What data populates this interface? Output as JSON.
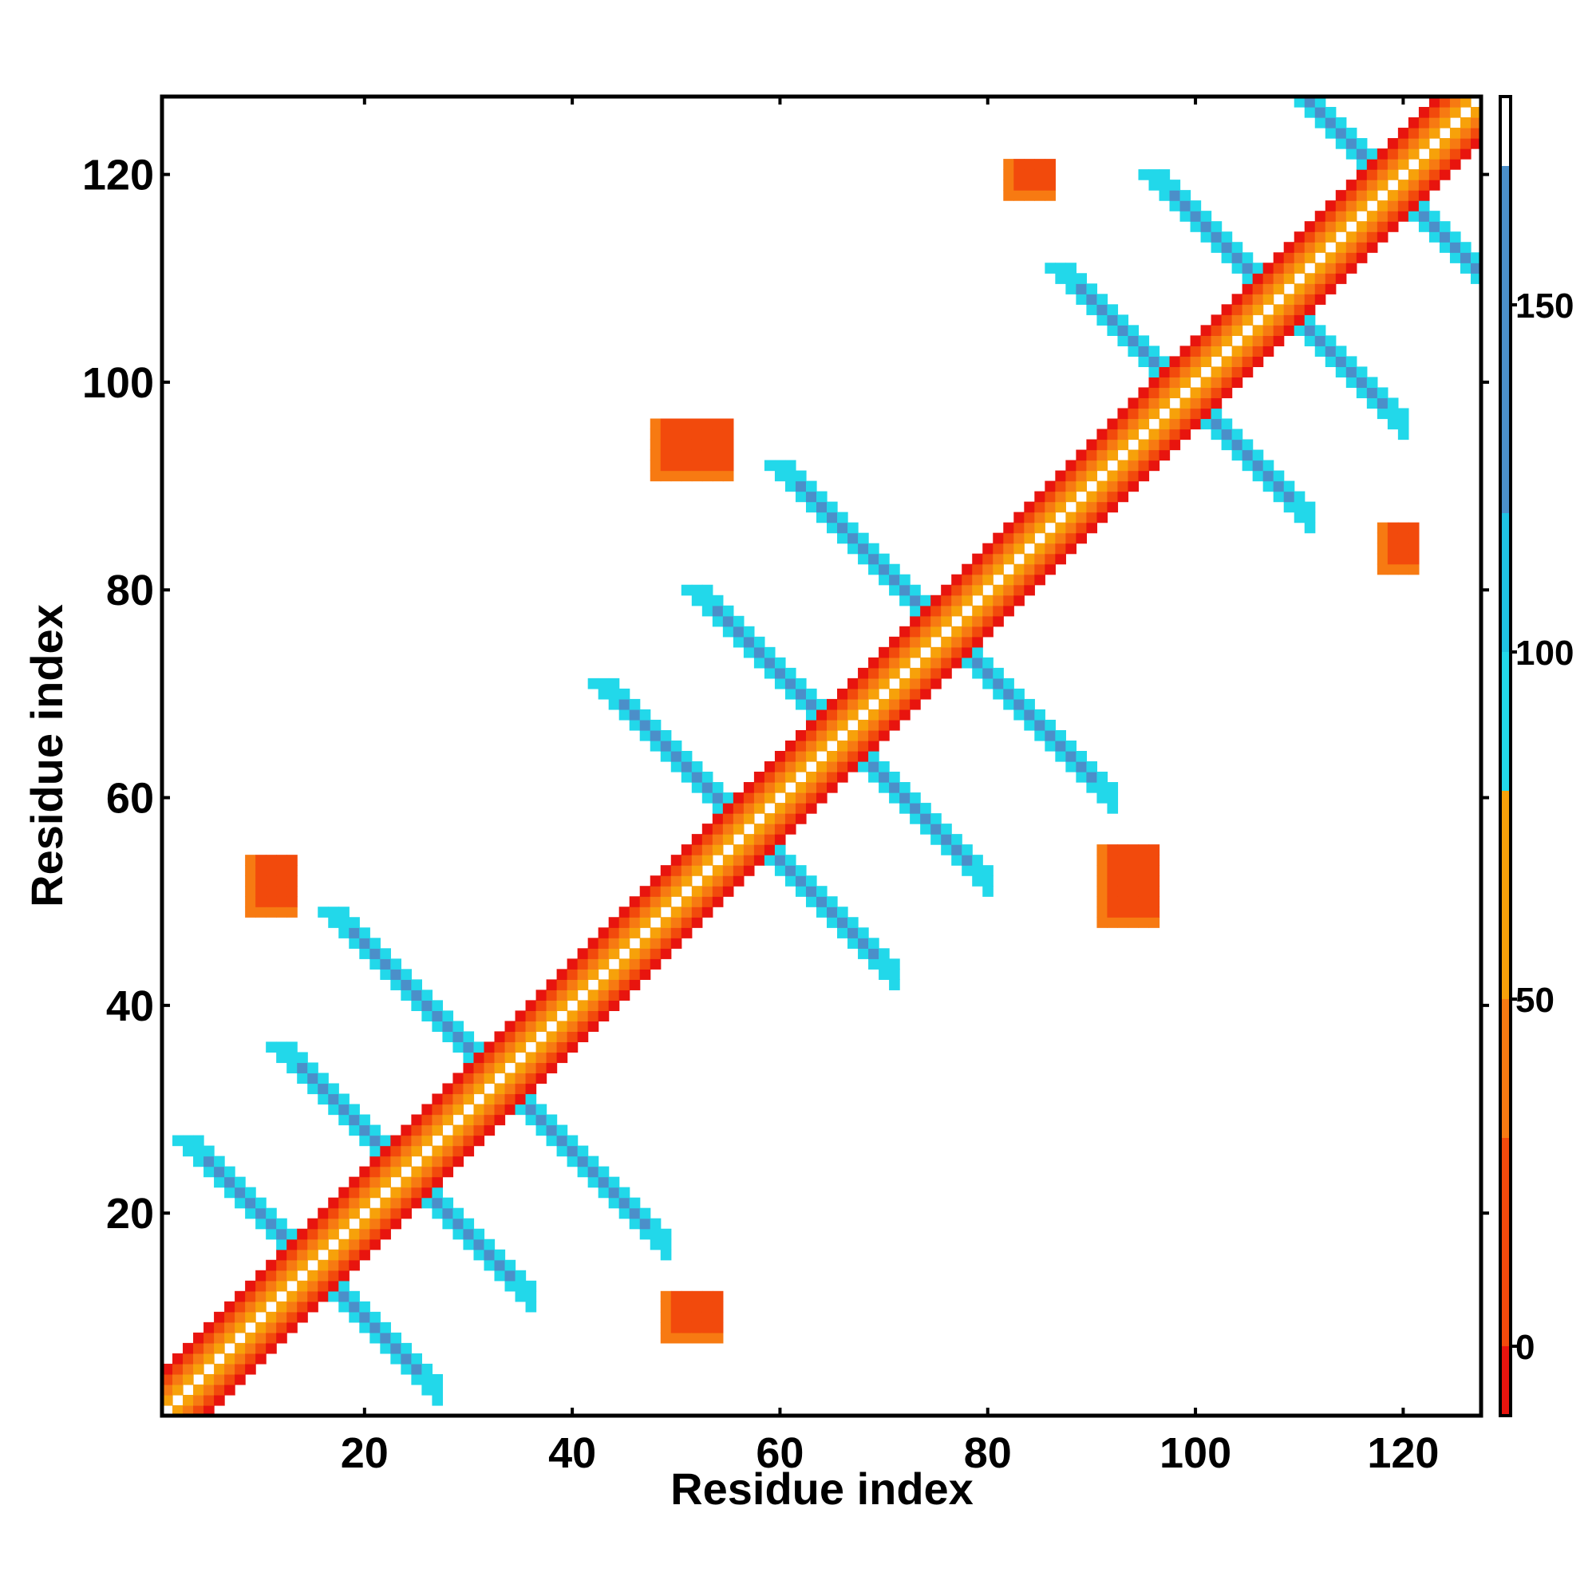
{
  "chart_data": {
    "type": "heatmap",
    "title": "",
    "xlabel": "Residue index",
    "ylabel": "Residue index",
    "xlim": [
      0.5,
      127.5
    ],
    "ylim": [
      0.5,
      127.5
    ],
    "x_ticks": [
      20,
      40,
      60,
      80,
      100,
      120
    ],
    "y_ticks": [
      20,
      40,
      60,
      80,
      100,
      120
    ],
    "colorbar": {
      "range": [
        -10,
        180
      ],
      "ticks": [
        0,
        50,
        100,
        150
      ],
      "bands": [
        {
          "from": -10,
          "to": 0,
          "color": "#e8140e"
        },
        {
          "from": 0,
          "to": 30,
          "color": "#f24a0c"
        },
        {
          "from": 30,
          "to": 50,
          "color": "#f77a12"
        },
        {
          "from": 50,
          "to": 80,
          "color": "#f7a10a"
        },
        {
          "from": 80,
          "to": 100,
          "color": "#22d8ea"
        },
        {
          "from": 100,
          "to": 120,
          "color": "#1fc4e3"
        },
        {
          "from": 120,
          "to": 170,
          "color": "#4b8fc9"
        },
        {
          "from": 170,
          "to": 180,
          "color": "#ffffff"
        }
      ]
    },
    "legend": "colorbar right",
    "grid": false,
    "structure": {
      "note": "contact map: value bands by distance from diagonal",
      "helix_segments": [
        [
          1,
          12
        ],
        [
          16,
          24
        ],
        [
          26,
          34
        ],
        [
          36,
          46
        ],
        [
          48,
          56
        ],
        [
          62,
          72
        ],
        [
          80,
          90
        ],
        [
          92,
          98
        ],
        [
          104,
          110
        ],
        [
          112,
          120
        ],
        [
          122,
          127
        ]
      ],
      "antiparallel_contacts": [
        {
          "center": [
            15,
            15
          ],
          "length": 12,
          "value": 150
        },
        {
          "center": [
            24,
            24
          ],
          "length": 12,
          "value": 150
        },
        {
          "center": [
            33,
            33
          ],
          "length": 16,
          "value": 150
        },
        {
          "center": [
            57,
            57
          ],
          "length": 14,
          "value": 150
        },
        {
          "center": [
            66,
            66
          ],
          "length": 14,
          "value": 150
        },
        {
          "center": [
            76,
            76
          ],
          "length": 16,
          "value": 150
        },
        {
          "center": [
            99,
            99
          ],
          "length": 12,
          "value": 150
        },
        {
          "center": [
            108,
            108
          ],
          "length": 12,
          "value": 150
        },
        {
          "center": [
            119,
            119
          ],
          "length": 14,
          "value": 150
        }
      ],
      "off_diagonal_patches": [
        {
          "x": [
            9,
            13
          ],
          "y": [
            49,
            54
          ],
          "value": 10
        },
        {
          "x": [
            49,
            54
          ],
          "y": [
            8,
            12
          ],
          "value": 10
        },
        {
          "x": [
            48,
            55
          ],
          "y": [
            91,
            96
          ],
          "value": 10
        },
        {
          "x": [
            91,
            96
          ],
          "y": [
            48,
            55
          ],
          "value": 10
        },
        {
          "x": [
            82,
            86
          ],
          "y": [
            118,
            121
          ],
          "value": 10
        },
        {
          "x": [
            118,
            121
          ],
          "y": [
            82,
            86
          ],
          "value": 10
        }
      ]
    }
  }
}
